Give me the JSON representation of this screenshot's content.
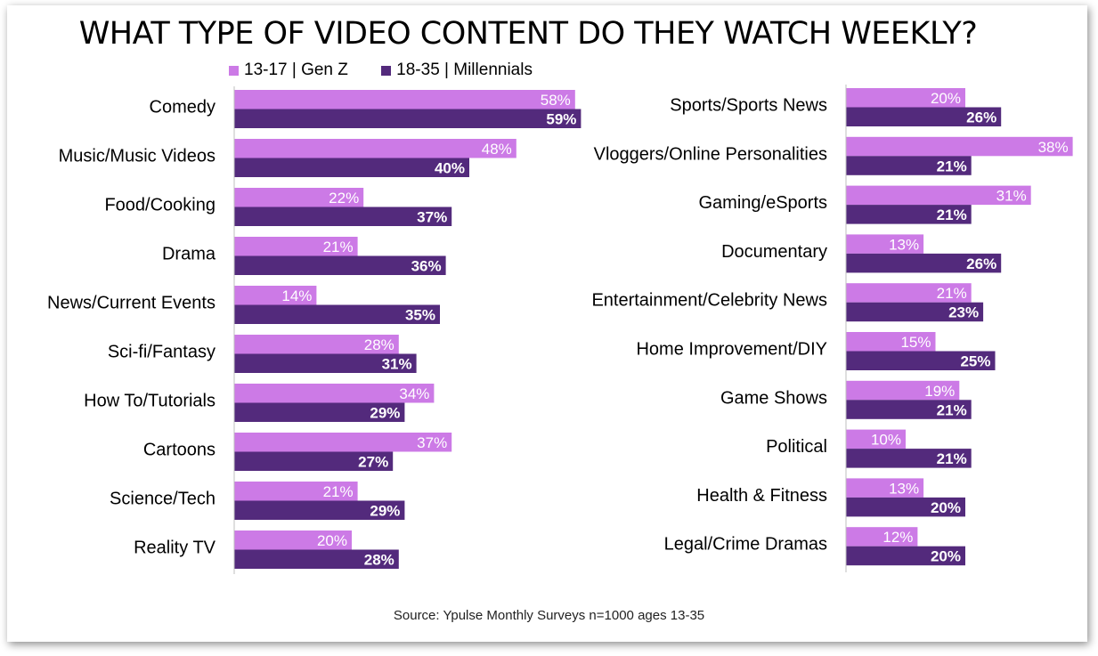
{
  "title": "WHAT TYPE OF VIDEO CONTENT DO THEY WATCH WEEKLY?",
  "source": "Source: Ypulse Monthly Surveys n=1000 ages 13-35",
  "colors": {
    "genz": "#cc7ae6",
    "millennials": "#532a7c",
    "axis": "#bfbfbf"
  },
  "chart_data": [
    {
      "type": "bar",
      "orientation": "horizontal",
      "title": "WHAT TYPE OF VIDEO CONTENT DO THEY WATCH WEEKLY?",
      "xlim": [
        0,
        60
      ],
      "categories": [
        "Comedy",
        "Music/Music Videos",
        "Food/Cooking",
        "Drama",
        "News/Current Events",
        "Sci-fi/Fantasy",
        "How To/Tutorials",
        "Cartoons",
        "Science/Tech",
        "Reality TV"
      ],
      "series": [
        {
          "name": "13-17 | Gen Z",
          "values": [
            58,
            48,
            22,
            21,
            14,
            28,
            34,
            37,
            21,
            20
          ]
        },
        {
          "name": "18-35 | Millennials",
          "values": [
            59,
            40,
            37,
            36,
            35,
            31,
            29,
            27,
            29,
            28
          ]
        }
      ],
      "value_labels": {
        "13-17 | Gen Z": [
          "58%",
          "48%",
          "22%",
          "21%",
          "14%",
          "28%",
          "34%",
          "37%",
          "21%",
          "20%"
        ],
        "18-35 | Millennials": [
          "59%",
          "40%",
          "37%",
          "36%",
          "35%",
          "31%",
          "29%",
          "27%",
          "29%",
          "28%"
        ]
      },
      "legend": "top"
    },
    {
      "type": "bar",
      "orientation": "horizontal",
      "xlim": [
        0,
        60
      ],
      "categories": [
        "Sports/Sports News",
        "Vloggers/Online Personalities",
        "Gaming/eSports",
        "Documentary",
        "Entertainment/Celebrity News",
        "Home Improvement/DIY",
        "Game Shows",
        "Political",
        "Health & Fitness",
        "Legal/Crime Dramas"
      ],
      "series": [
        {
          "name": "13-17 | Gen Z",
          "values": [
            20,
            38,
            31,
            13,
            21,
            15,
            19,
            10,
            13,
            12
          ]
        },
        {
          "name": "18-35 | Millennials",
          "values": [
            26,
            21,
            21,
            26,
            23,
            25,
            21,
            21,
            20,
            20
          ]
        }
      ],
      "value_labels": {
        "13-17 | Gen Z": [
          "20%",
          "38%",
          "31%",
          "13%",
          "21%",
          "15%",
          "19%",
          "10%",
          "13%",
          "12%"
        ],
        "18-35 | Millennials": [
          "26%",
          "21%",
          "21%",
          "26%",
          "23%",
          "25%",
          "21%",
          "21%",
          "20%",
          "20%"
        ]
      }
    }
  ]
}
